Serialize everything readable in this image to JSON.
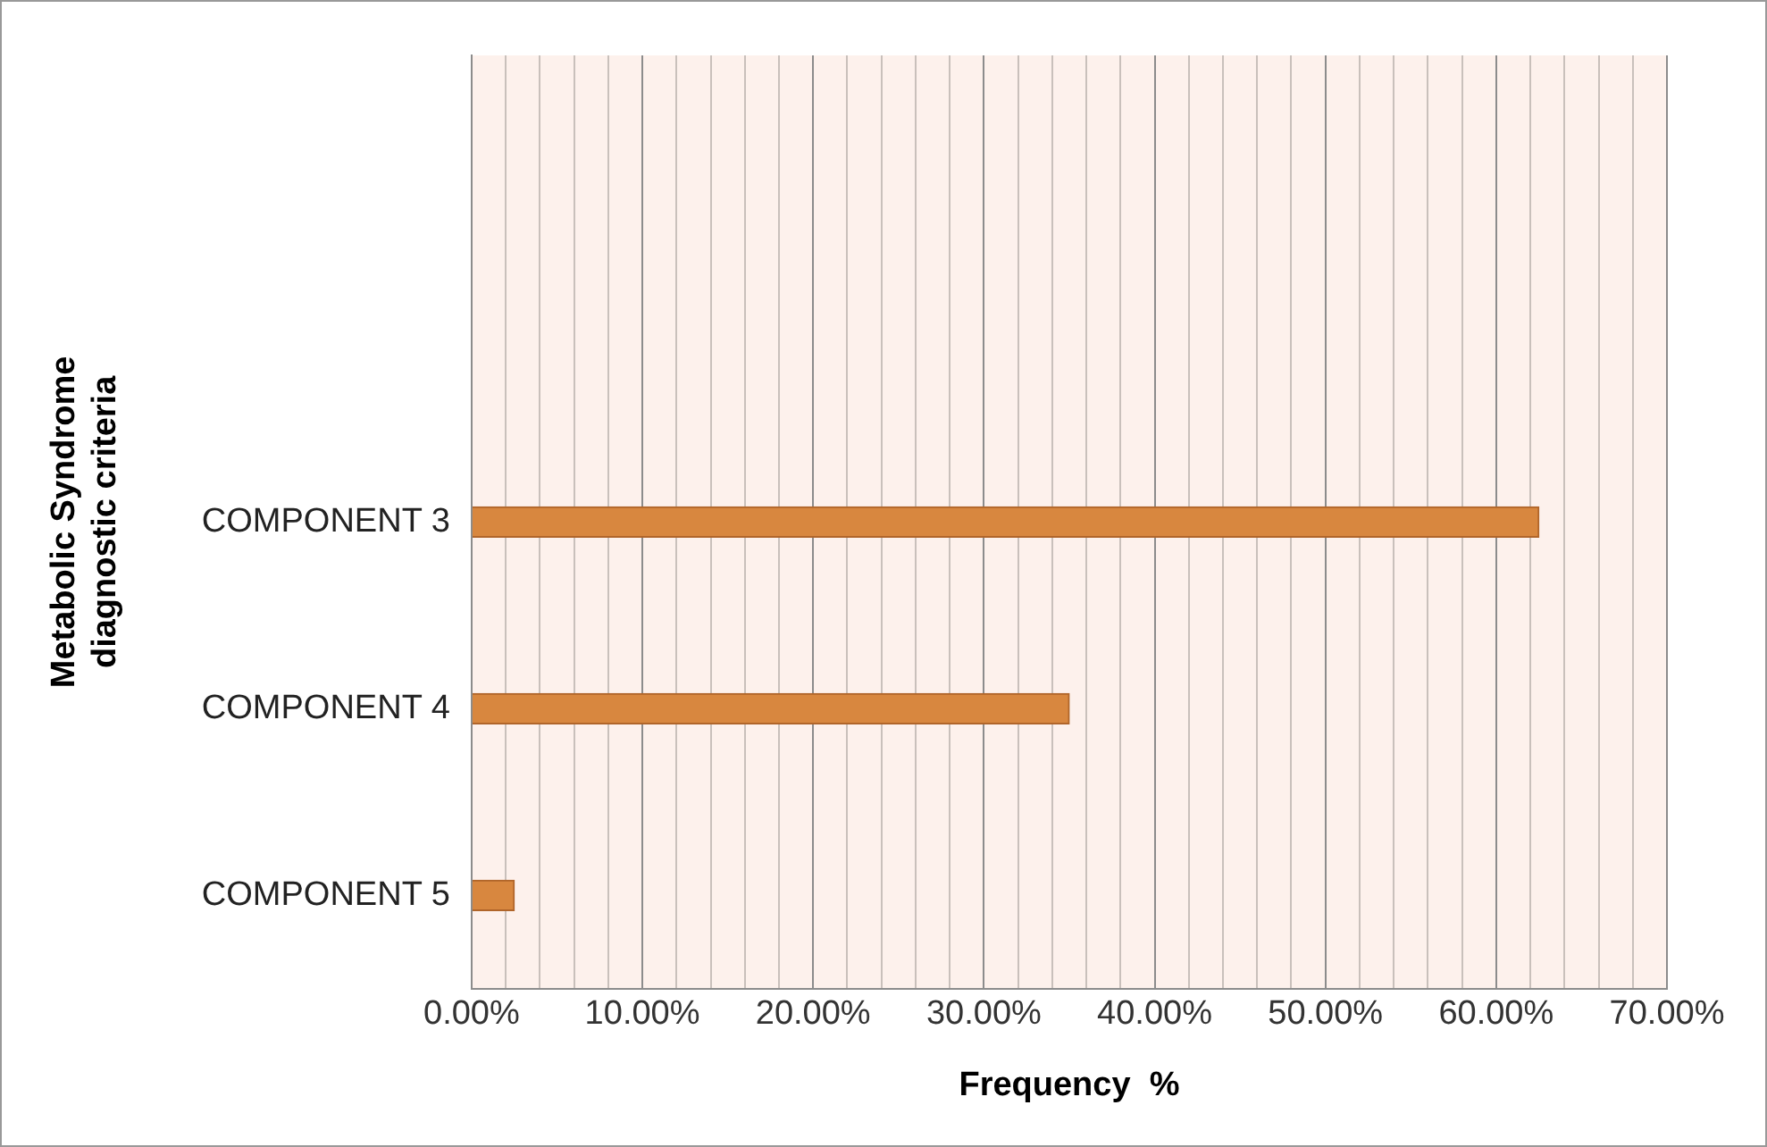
{
  "chart_data": {
    "type": "bar",
    "orientation": "horizontal",
    "xlabel": "Frequency  %",
    "ylabel": "Metabolic Syndrome diagnostic criteria",
    "categories": [
      null,
      null,
      "COMPONENT 3",
      "COMPONENT 4",
      "COMPONENT 5"
    ],
    "values": [
      null,
      null,
      62.5,
      35,
      2.5
    ],
    "color": "#d8873f",
    "xlim": [
      0,
      70
    ],
    "xticks": [
      {
        "value": 0,
        "label": "0.00%"
      },
      {
        "value": 2,
        "label": null
      },
      {
        "value": 4,
        "label": null
      },
      {
        "value": 6,
        "label": null
      },
      {
        "value": 8,
        "label": null
      },
      {
        "value": 10,
        "label": "10.00%"
      },
      {
        "value": 12,
        "label": null
      },
      {
        "value": 14,
        "label": null
      },
      {
        "value": 16,
        "label": null
      },
      {
        "value": 18,
        "label": null
      },
      {
        "value": 20,
        "label": "20.00%"
      },
      {
        "value": 22,
        "label": null
      },
      {
        "value": 24,
        "label": null
      },
      {
        "value": 26,
        "label": null
      },
      {
        "value": 28,
        "label": null
      },
      {
        "value": 30,
        "label": "30.00%"
      },
      {
        "value": 32,
        "label": null
      },
      {
        "value": 34,
        "label": null
      },
      {
        "value": 36,
        "label": null
      },
      {
        "value": 38,
        "label": null
      },
      {
        "value": 40,
        "label": "40.00%"
      },
      {
        "value": 42,
        "label": null
      },
      {
        "value": 44,
        "label": null
      },
      {
        "value": 46,
        "label": null
      },
      {
        "value": 48,
        "label": null
      },
      {
        "value": 50,
        "label": "50.00%"
      },
      {
        "value": 52,
        "label": null
      },
      {
        "value": 54,
        "label": null
      },
      {
        "value": 56,
        "label": null
      },
      {
        "value": 58,
        "label": null
      },
      {
        "value": 60,
        "label": "60.00%"
      },
      {
        "value": 62,
        "label": null
      },
      {
        "value": 64,
        "label": null
      },
      {
        "value": 66,
        "label": null
      },
      {
        "value": 68,
        "label": null
      },
      {
        "value": 70,
        "label": "70.00%"
      }
    ],
    "grid": "x",
    "legend": false
  }
}
